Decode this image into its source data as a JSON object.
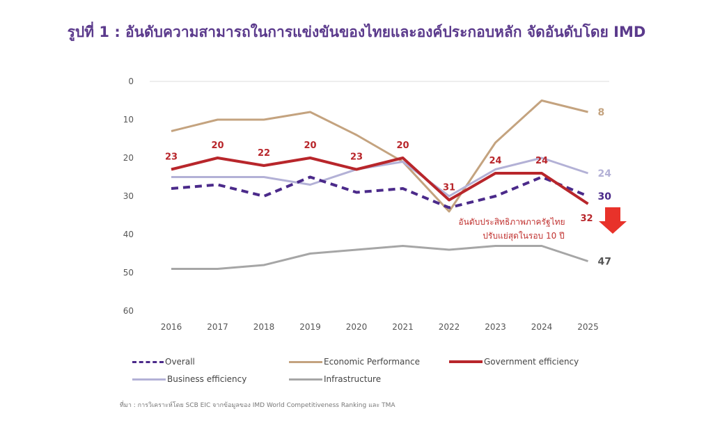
{
  "title": "รูปที่ 1 : อันดับความสามารถในการแข่งขันของไทยและองค์ประกอบหลัก จัดอันดับโดย IMD",
  "source": "ที่มา : การวิเคราะห์โดย SCB EIC จากข้อมูลของ IMD World Competitiveness Ranking และ TMA",
  "chart_data": {
    "type": "line",
    "title": "รูปที่ 1 : อันดับความสามารถในการแข่งขันของไทยและองค์ประกอบหลัก จัดอันดับโดย IMD",
    "x": [
      "2016",
      "2017",
      "2018",
      "2019",
      "2020",
      "2021",
      "2022",
      "2023",
      "2024",
      "2025"
    ],
    "ylim": [
      0,
      60
    ],
    "y_inverted": true,
    "yticks": [
      "0",
      "10",
      "20",
      "30",
      "40",
      "50",
      "60"
    ],
    "legend_position": "bottom",
    "annotation": [
      "อันดับประสิทธิภาพภาครัฐไทย",
      "ปรับแย่สุดในรอบ 10 ปี"
    ],
    "series": [
      {
        "name": "Economic Performance",
        "color": "#c4a37f",
        "dash": false,
        "values": [
          13,
          10,
          10,
          8,
          14,
          21,
          34,
          16,
          5,
          8
        ],
        "end_label": "8"
      },
      {
        "name": "Business efficiency",
        "color": "#b3b1d6",
        "dash": false,
        "values": [
          25,
          25,
          25,
          27,
          23,
          21,
          30,
          23,
          20,
          24
        ],
        "end_label": "24"
      },
      {
        "name": "Infrastructure",
        "color": "#a6a6a6",
        "dash": false,
        "values": [
          49,
          49,
          48,
          45,
          44,
          43,
          44,
          43,
          43,
          47
        ],
        "end_label": "47"
      },
      {
        "name": "Overall",
        "color": "#4b2a8a",
        "dash": true,
        "values": [
          28,
          27,
          30,
          25,
          29,
          28,
          33,
          30,
          25,
          30
        ],
        "end_label": "30"
      },
      {
        "name": "Government efficiency",
        "color": "#b8262b",
        "dash": false,
        "values": [
          23,
          20,
          22,
          20,
          23,
          20,
          31,
          24,
          24,
          32
        ],
        "labels": [
          "23",
          "20",
          "22",
          "20",
          "23",
          "20",
          "31",
          "24",
          "24",
          "32"
        ]
      }
    ]
  }
}
